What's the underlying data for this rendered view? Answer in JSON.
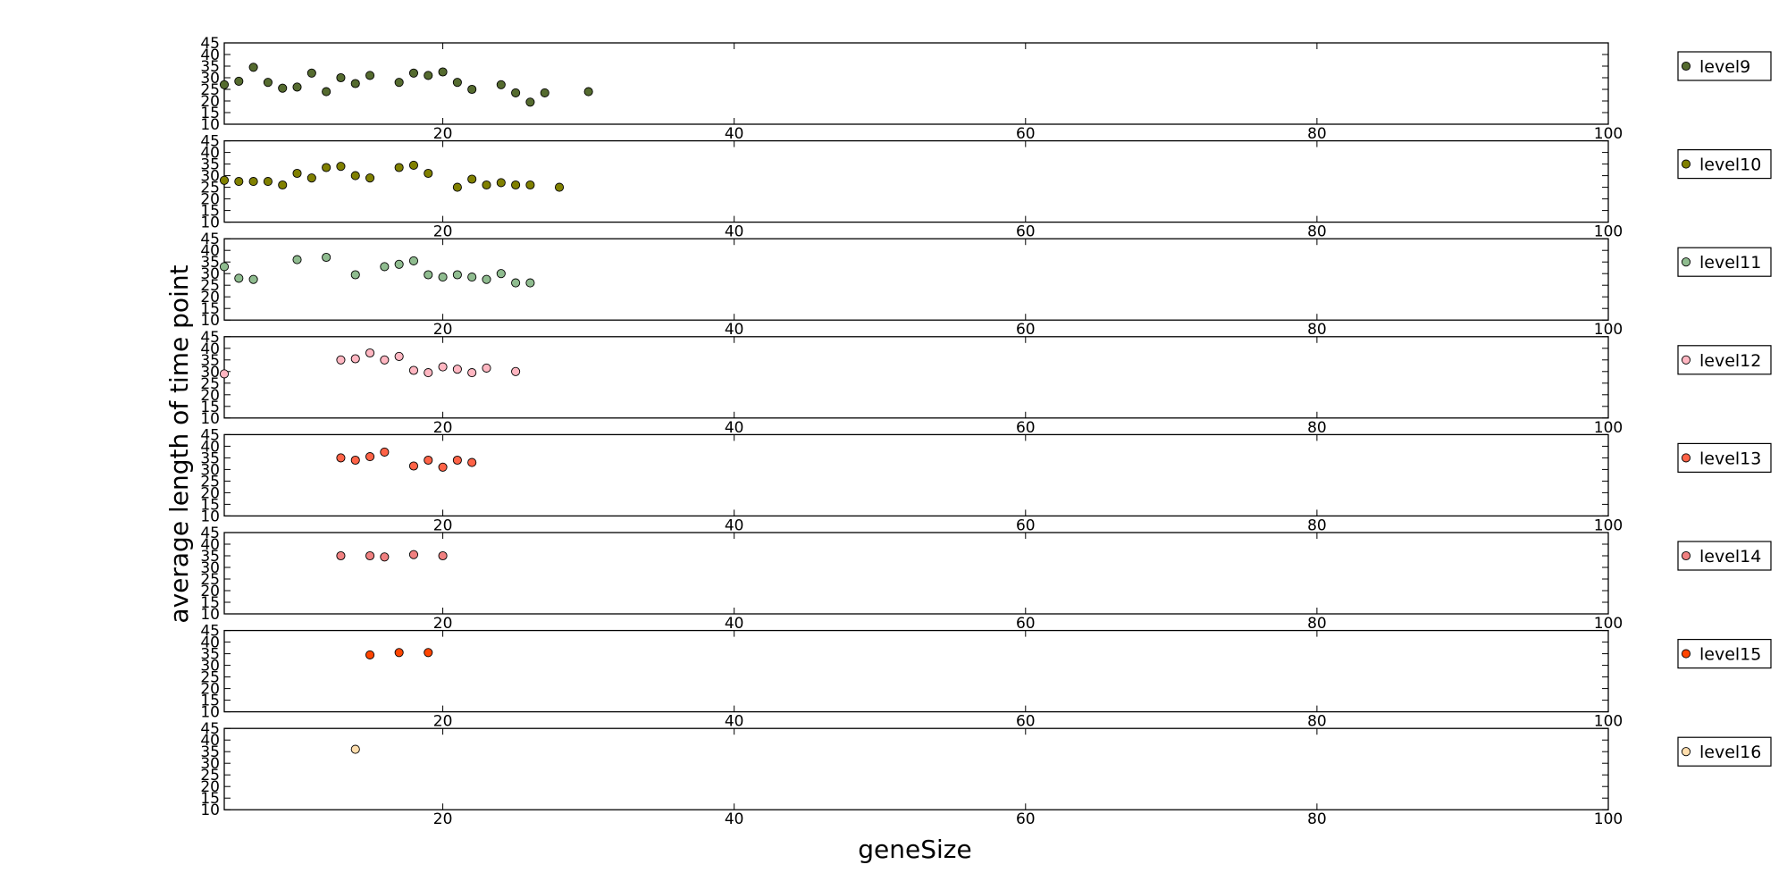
{
  "chart_data": {
    "type": "scatter",
    "xlabel": "geneSize",
    "ylabel": "average length of time point",
    "xlim": [
      5,
      100
    ],
    "ylim": [
      10,
      45
    ],
    "x_ticks": [
      20,
      40,
      60,
      80,
      100
    ],
    "y_ticks": [
      10,
      15,
      20,
      25,
      30,
      35,
      40,
      45
    ],
    "legend_placement": "right of each panel",
    "grid": false,
    "series": [
      {
        "name": "level9",
        "color": "#556b2f",
        "x": [
          5,
          6,
          7,
          8,
          9,
          10,
          11,
          12,
          13,
          14,
          15,
          17,
          18,
          19,
          20,
          21,
          22,
          24,
          25,
          26,
          27,
          30
        ],
        "y": [
          27,
          28.5,
          34.5,
          28,
          25.5,
          26,
          32,
          24,
          30,
          27.5,
          31,
          28,
          32,
          31,
          32.5,
          28,
          25,
          27,
          23.5,
          19.5,
          23.5,
          24
        ]
      },
      {
        "name": "level10",
        "color": "#808000",
        "x": [
          5,
          6,
          7,
          8,
          9,
          10,
          11,
          12,
          13,
          14,
          15,
          17,
          18,
          19,
          21,
          22,
          23,
          24,
          25,
          26,
          28
        ],
        "y": [
          28,
          27.5,
          27.5,
          27.5,
          26,
          31,
          29,
          33.5,
          34,
          30,
          29,
          33.5,
          34.5,
          31,
          25,
          28.5,
          26,
          27,
          26,
          26,
          25
        ]
      },
      {
        "name": "level11",
        "color": "#8fbc8f",
        "x": [
          5,
          6,
          7,
          10,
          12,
          14,
          16,
          17,
          18,
          19,
          20,
          21,
          22,
          23,
          24,
          25,
          26
        ],
        "y": [
          33,
          28,
          27.5,
          36,
          37,
          29.5,
          33,
          34,
          35.5,
          29.5,
          28.5,
          29.5,
          28.5,
          27.5,
          30,
          26,
          26
        ]
      },
      {
        "name": "level12",
        "color": "#ffb6c1",
        "x": [
          5,
          13,
          14,
          15,
          16,
          17,
          18,
          19,
          20,
          21,
          22,
          23,
          25
        ],
        "y": [
          29,
          35,
          35.5,
          38,
          35,
          36.5,
          30.5,
          29.5,
          32,
          31,
          29.5,
          31.5,
          30
        ]
      },
      {
        "name": "level13",
        "color": "#ff6347",
        "x": [
          13,
          14,
          15,
          16,
          18,
          19,
          20,
          21,
          22
        ],
        "y": [
          35,
          34,
          35.5,
          37.5,
          31.5,
          34,
          31,
          34,
          33
        ]
      },
      {
        "name": "level14",
        "color": "#f08080",
        "x": [
          13,
          15,
          16,
          18,
          20
        ],
        "y": [
          35,
          35,
          34.5,
          35.5,
          35
        ]
      },
      {
        "name": "level15",
        "color": "#ff4500",
        "x": [
          15,
          17,
          19
        ],
        "y": [
          34.5,
          35.5,
          35.5
        ]
      },
      {
        "name": "level16",
        "color": "#ffdead",
        "x": [
          14
        ],
        "y": [
          36
        ]
      }
    ]
  }
}
